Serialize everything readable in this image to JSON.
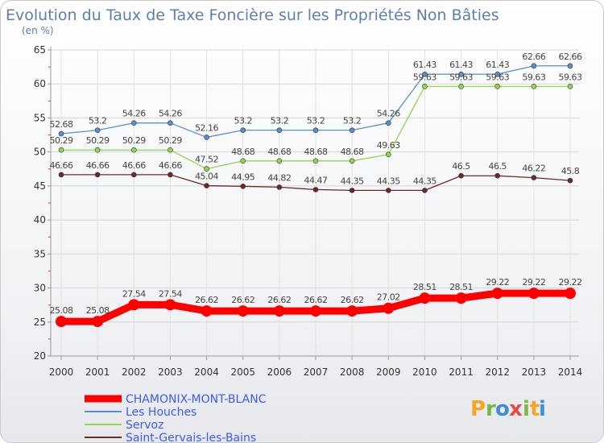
{
  "chart_data": {
    "type": "line",
    "title": "Evolution du Taux de Taxe Foncière sur les Propriétés Non Bâties",
    "ylabel": "(en %)",
    "xlabel": "",
    "x": [
      "2000",
      "2001",
      "2002",
      "2003",
      "2004",
      "2005",
      "2006",
      "2007",
      "2008",
      "2009",
      "2010",
      "2011",
      "2012",
      "2013",
      "2014"
    ],
    "ylim": [
      20,
      65
    ],
    "yticks": [
      20,
      25,
      30,
      35,
      40,
      45,
      50,
      55,
      60,
      65
    ],
    "grid": true,
    "legend_position": "bottom-left",
    "series": [
      {
        "name": "CHAMONIX-MONT-BLANC",
        "color": "#ff0000",
        "values": [
          25.08,
          25.08,
          27.54,
          27.54,
          26.62,
          26.62,
          26.62,
          26.62,
          26.62,
          27.02,
          28.51,
          28.51,
          29.22,
          29.22,
          29.22
        ],
        "labels": [
          "25.08",
          "25.08",
          "27.54",
          "27.54",
          "26.62",
          "26.62",
          "26.62",
          "26.62",
          "26.62",
          "27.02",
          "28.51",
          "28.51",
          "29.22",
          "29.22",
          "29.22"
        ]
      },
      {
        "name": "Les Houches",
        "color": "#5b8fd1",
        "values": [
          52.68,
          53.2,
          54.26,
          54.26,
          52.16,
          53.2,
          53.2,
          53.2,
          53.2,
          54.26,
          61.43,
          61.43,
          61.43,
          62.66,
          62.66
        ],
        "labels": [
          "52.68",
          "53.2",
          "54.26",
          "54.26",
          "52.16",
          "53.2",
          "53.2",
          "53.2",
          "53.2",
          "54.26",
          "61.43",
          "61.43",
          "61.43",
          "62.66",
          "62.66"
        ]
      },
      {
        "name": "Servoz",
        "color": "#8fd84c",
        "values": [
          50.29,
          50.29,
          50.29,
          50.29,
          47.52,
          48.68,
          48.68,
          48.68,
          48.68,
          49.63,
          59.63,
          59.63,
          59.63,
          59.63,
          59.63
        ],
        "labels": [
          "50.29",
          "50.29",
          "50.29",
          "50.29",
          "47.52",
          "48.68",
          "48.68",
          "48.68",
          "48.68",
          "49.63",
          "59.63",
          "59.63",
          "59.63",
          "59.63",
          "59.63"
        ]
      },
      {
        "name": "Saint-Gervais-les-Bains",
        "color": "#6b2a2a",
        "values": [
          46.66,
          46.66,
          46.66,
          46.66,
          45.04,
          44.95,
          44.82,
          44.47,
          44.35,
          44.35,
          44.35,
          46.5,
          46.5,
          46.22,
          45.8
        ],
        "labels": [
          "46.66",
          "46.66",
          "46.66",
          "46.66",
          "45.04",
          "44.95",
          "44.82",
          "44.47",
          "44.35",
          "44.35",
          "44.35",
          "46.5",
          "46.5",
          "46.22",
          "45.8"
        ]
      }
    ]
  },
  "logo": {
    "text": "Proxiti",
    "letters": [
      "P",
      "r",
      "o",
      "x",
      "i",
      "t",
      "i"
    ]
  }
}
